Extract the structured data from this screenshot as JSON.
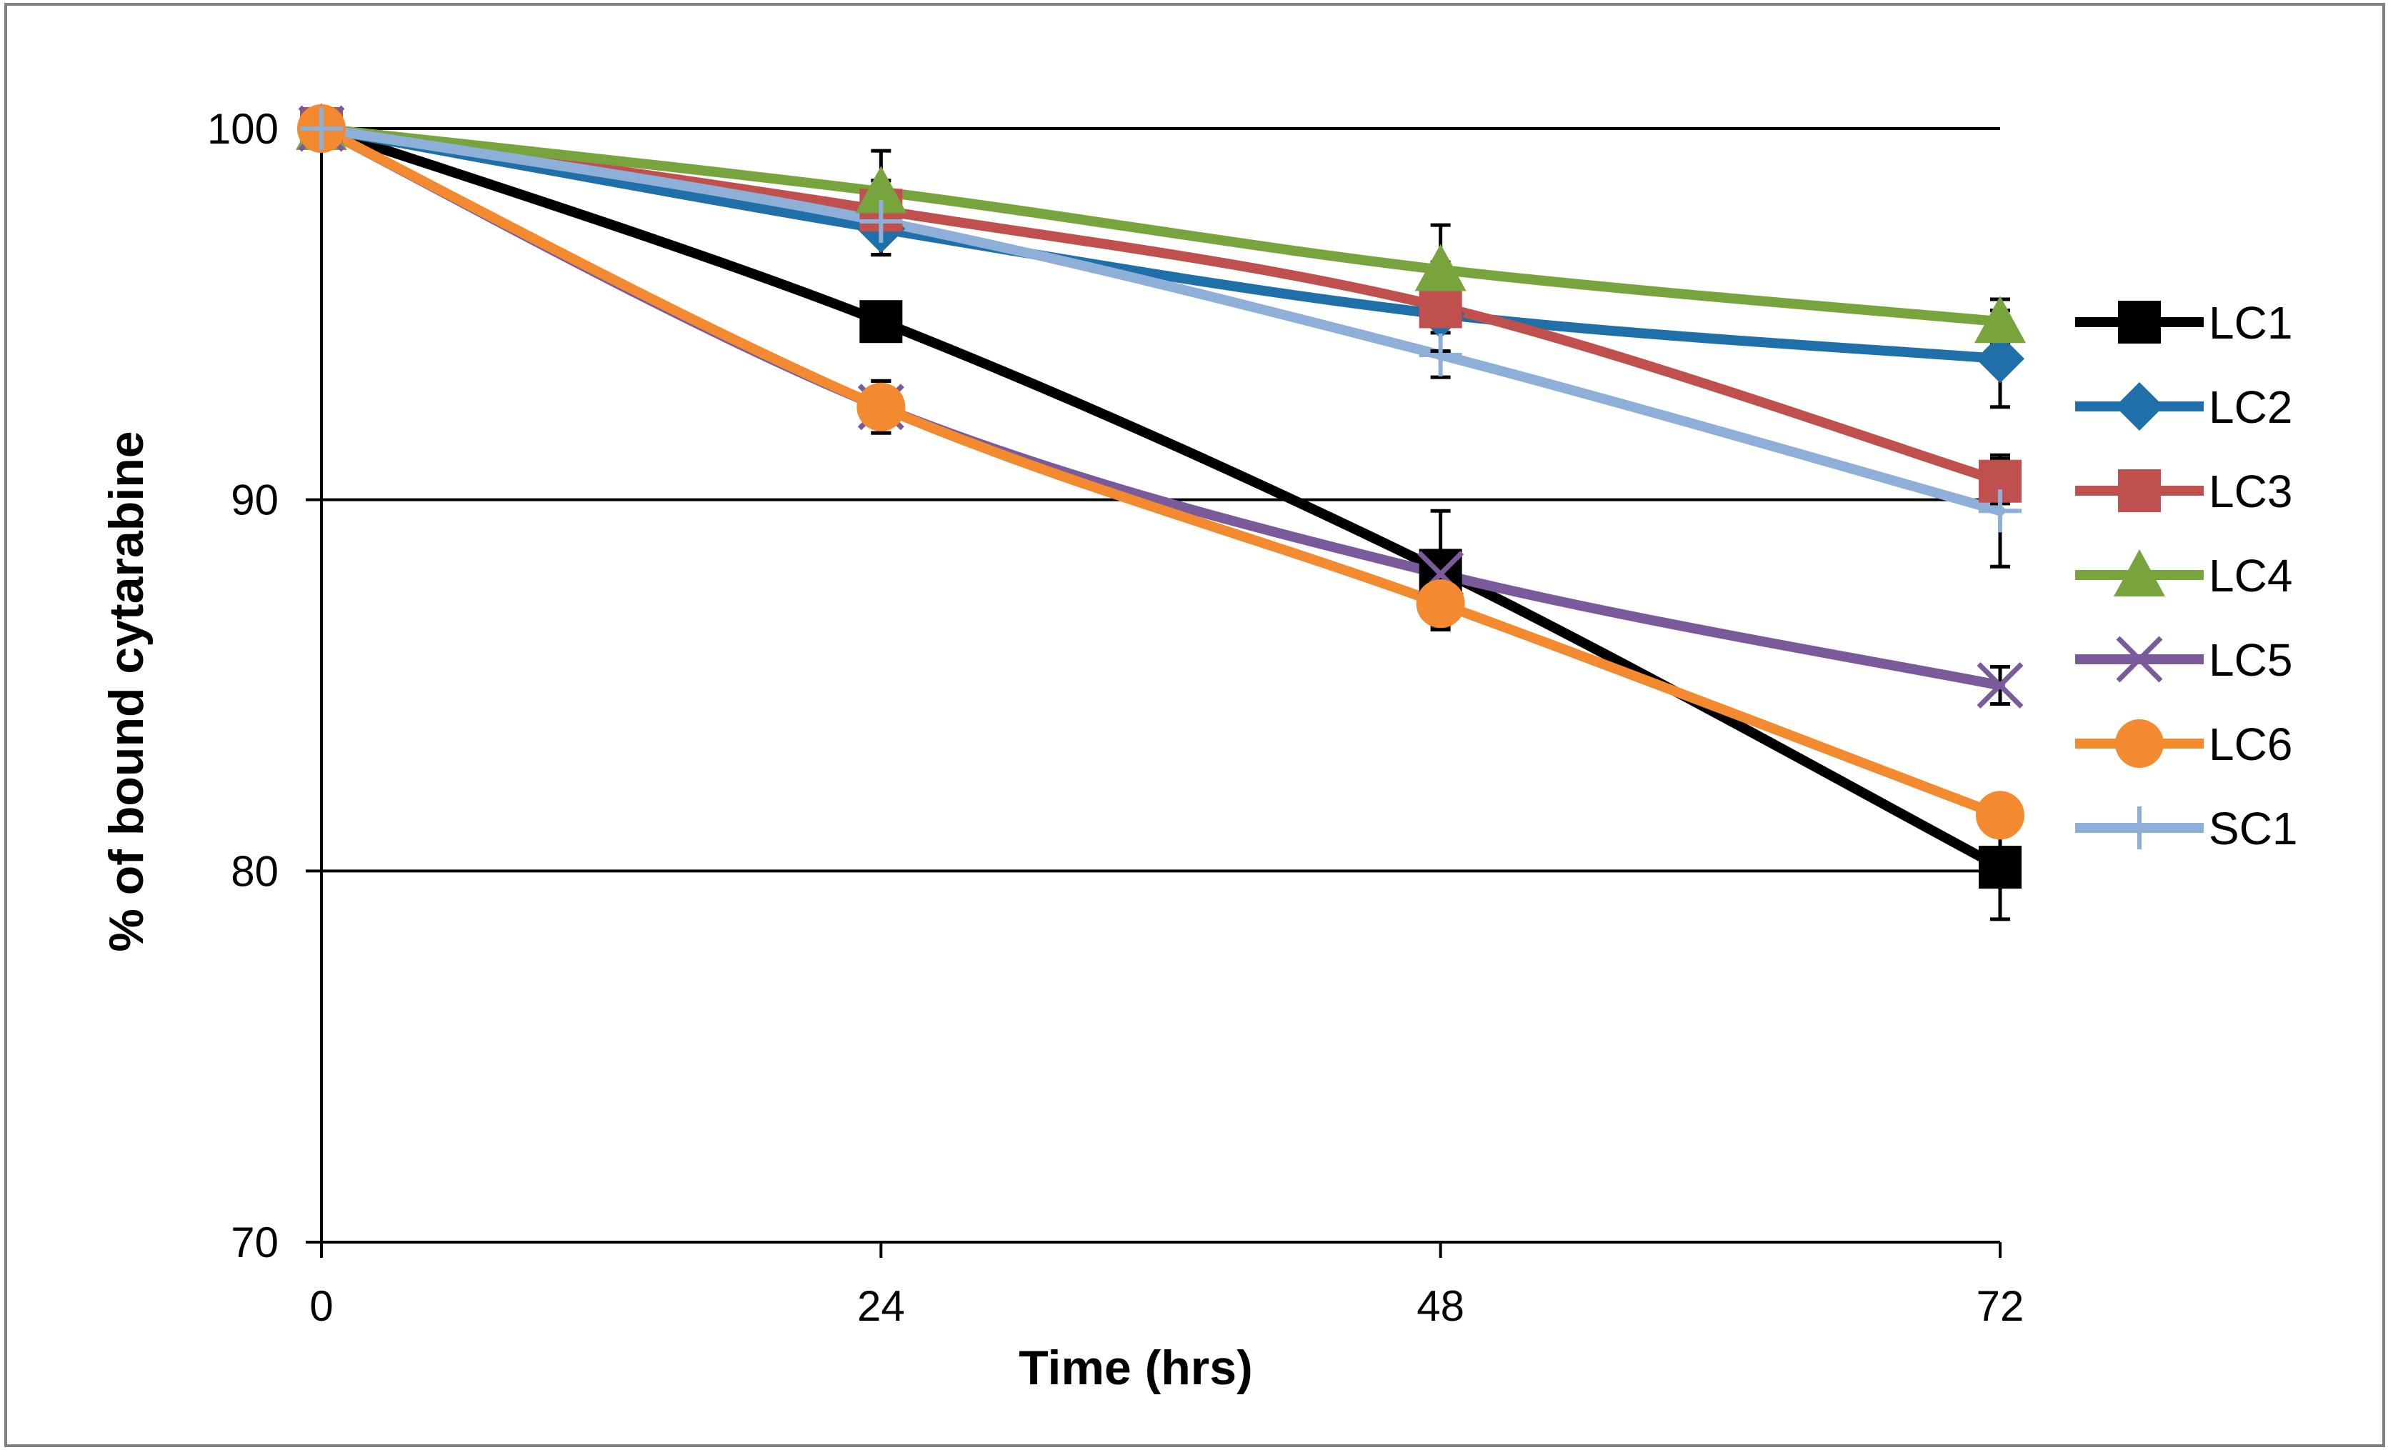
{
  "chart_data": {
    "type": "line",
    "title": "",
    "xlabel": "Time (hrs)",
    "ylabel": "% of bound cytarabine",
    "x": [
      0,
      24,
      48,
      72
    ],
    "x_tick_labels": [
      "0",
      "24",
      "48",
      "72"
    ],
    "xlim": [
      0,
      72
    ],
    "ylim": [
      70,
      100
    ],
    "y_ticks": [
      70,
      80,
      90,
      100
    ],
    "y_tick_labels": [
      "70",
      "80",
      "90",
      "100"
    ],
    "grid": "horizontal major lines",
    "legend_position": "right",
    "series": [
      {
        "name": "LC1",
        "values": [
          100,
          94.8,
          88.1,
          80.1
        ],
        "errors": [
          0,
          0.5,
          1.6,
          1.4
        ],
        "color": "#000000",
        "marker": "square"
      },
      {
        "name": "LC2",
        "values": [
          100,
          97.3,
          95.0,
          93.8
        ],
        "errors": [
          0,
          0.7,
          1.0,
          1.3
        ],
        "color": "#1F6FA8",
        "marker": "diamond"
      },
      {
        "name": "LC3",
        "values": [
          100,
          97.8,
          95.2,
          90.5
        ],
        "errors": [
          0,
          0.8,
          1.2,
          0.6
        ],
        "color": "#C0504D",
        "marker": "square"
      },
      {
        "name": "LC4",
        "values": [
          100,
          98.3,
          96.2,
          94.8
        ],
        "errors": [
          0,
          1.1,
          1.2,
          0.6
        ],
        "color": "#77A43D",
        "marker": "triangle"
      },
      {
        "name": "LC5",
        "values": [
          100,
          92.5,
          88.0,
          85.0
        ],
        "errors": [
          0,
          0.7,
          0.5,
          0.5
        ],
        "color": "#7B5A9B",
        "marker": "x"
      },
      {
        "name": "LC6",
        "values": [
          100,
          92.5,
          87.2,
          81.5
        ],
        "errors": [
          0,
          0.7,
          0.6,
          0.4
        ],
        "color": "#F38A2F",
        "marker": "circle"
      },
      {
        "name": "SC1",
        "values": [
          100,
          97.5,
          93.9,
          89.7
        ],
        "errors": [
          0,
          0.9,
          0.6,
          1.5
        ],
        "color": "#8EAFD7",
        "marker": "plus"
      }
    ]
  }
}
